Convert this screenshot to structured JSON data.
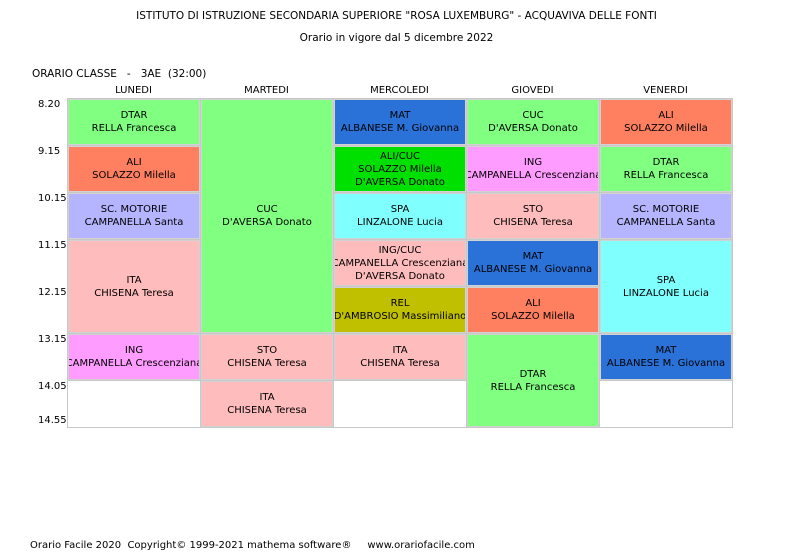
{
  "header": {
    "title": "ISTITUTO DI ISTRUZIONE SECONDARIA SUPERIORE \"ROSA LUXEMBURG\" - ACQUAVIVA DELLE FONTI",
    "subtitle": "Orario in vigore dal 5 dicembre 2022"
  },
  "class_label": "ORARIO CLASSE   -   3AE  (32:00)",
  "days": [
    "LUNEDI",
    "MARTEDI",
    "MERCOLEDI",
    "GIOVEDI",
    "VENERDI"
  ],
  "times": [
    "8.20",
    "9.15",
    "10.15",
    "11.15",
    "12.15",
    "13.15",
    "14.05",
    "14.55"
  ],
  "colors": {
    "green": "#80ff80",
    "salmon": "#ff8060",
    "lavender": "#b4b4ff",
    "pink": "#ffbcbc",
    "blue": "#2a72d8",
    "brightgreen": "#00e000",
    "cyan": "#80ffff",
    "violet": "#ff9cff",
    "olive": "#c0c000"
  },
  "lessons": [
    {
      "day": 0,
      "start": 0,
      "span": 1,
      "color": "green",
      "lines": [
        "DTAR",
        "RELLA Francesca"
      ]
    },
    {
      "day": 0,
      "start": 1,
      "span": 1,
      "color": "salmon",
      "lines": [
        "ALI",
        "SOLAZZO Milella"
      ]
    },
    {
      "day": 0,
      "start": 2,
      "span": 1,
      "color": "lavender",
      "lines": [
        "SC. MOTORIE",
        "CAMPANELLA Santa"
      ]
    },
    {
      "day": 0,
      "start": 3,
      "span": 2,
      "color": "pink",
      "lines": [
        "ITA",
        "CHISENA Teresa"
      ]
    },
    {
      "day": 0,
      "start": 5,
      "span": 1,
      "color": "violet",
      "lines": [
        "ING",
        "CAMPANELLA Crescenziana"
      ]
    },
    {
      "day": 1,
      "start": 0,
      "span": 5,
      "color": "green",
      "lines": [
        "CUC",
        "D'AVERSA Donato"
      ]
    },
    {
      "day": 1,
      "start": 5,
      "span": 1,
      "color": "pink",
      "lines": [
        "STO",
        "CHISENA Teresa"
      ]
    },
    {
      "day": 1,
      "start": 6,
      "span": 1,
      "color": "pink",
      "lines": [
        "ITA",
        "CHISENA Teresa"
      ]
    },
    {
      "day": 2,
      "start": 0,
      "span": 1,
      "color": "blue",
      "lines": [
        "MAT",
        "ALBANESE M. Giovanna"
      ]
    },
    {
      "day": 2,
      "start": 1,
      "span": 1,
      "color": "brightgreen",
      "lines": [
        "ALI/CUC",
        "SOLAZZO Milella",
        "D'AVERSA Donato"
      ]
    },
    {
      "day": 2,
      "start": 2,
      "span": 1,
      "color": "cyan",
      "lines": [
        "SPA",
        "LINZALONE Lucia"
      ]
    },
    {
      "day": 2,
      "start": 3,
      "span": 1,
      "color": "pink",
      "lines": [
        "ING/CUC",
        "CAMPANELLA Crescenziana",
        "D'AVERSA Donato"
      ]
    },
    {
      "day": 2,
      "start": 4,
      "span": 1,
      "color": "olive",
      "lines": [
        "REL",
        "D'AMBROSIO Massimiliano"
      ]
    },
    {
      "day": 2,
      "start": 5,
      "span": 1,
      "color": "pink",
      "lines": [
        "ITA",
        "CHISENA Teresa"
      ]
    },
    {
      "day": 3,
      "start": 0,
      "span": 1,
      "color": "green",
      "lines": [
        "CUC",
        "D'AVERSA Donato"
      ]
    },
    {
      "day": 3,
      "start": 1,
      "span": 1,
      "color": "violet",
      "lines": [
        "ING",
        "CAMPANELLA Crescenziana"
      ]
    },
    {
      "day": 3,
      "start": 2,
      "span": 1,
      "color": "pink",
      "lines": [
        "STO",
        "CHISENA Teresa"
      ]
    },
    {
      "day": 3,
      "start": 3,
      "span": 1,
      "color": "blue",
      "lines": [
        "MAT",
        "ALBANESE M. Giovanna"
      ]
    },
    {
      "day": 3,
      "start": 4,
      "span": 1,
      "color": "salmon",
      "lines": [
        "ALI",
        "SOLAZZO Milella"
      ]
    },
    {
      "day": 3,
      "start": 5,
      "span": 2,
      "color": "green",
      "lines": [
        "DTAR",
        "RELLA Francesca"
      ]
    },
    {
      "day": 4,
      "start": 0,
      "span": 1,
      "color": "salmon",
      "lines": [
        "ALI",
        "SOLAZZO Milella"
      ]
    },
    {
      "day": 4,
      "start": 1,
      "span": 1,
      "color": "green",
      "lines": [
        "DTAR",
        "RELLA Francesca"
      ]
    },
    {
      "day": 4,
      "start": 2,
      "span": 1,
      "color": "lavender",
      "lines": [
        "SC. MOTORIE",
        "CAMPANELLA Santa"
      ]
    },
    {
      "day": 4,
      "start": 3,
      "span": 2,
      "color": "cyan",
      "lines": [
        "SPA",
        "LINZALONE Lucia"
      ]
    },
    {
      "day": 4,
      "start": 5,
      "span": 1,
      "color": "blue",
      "lines": [
        "MAT",
        "ALBANESE M. Giovanna"
      ]
    }
  ],
  "footer": "Orario Facile 2020  Copyright© 1999-2021 mathema software®     www.orariofacile.com"
}
